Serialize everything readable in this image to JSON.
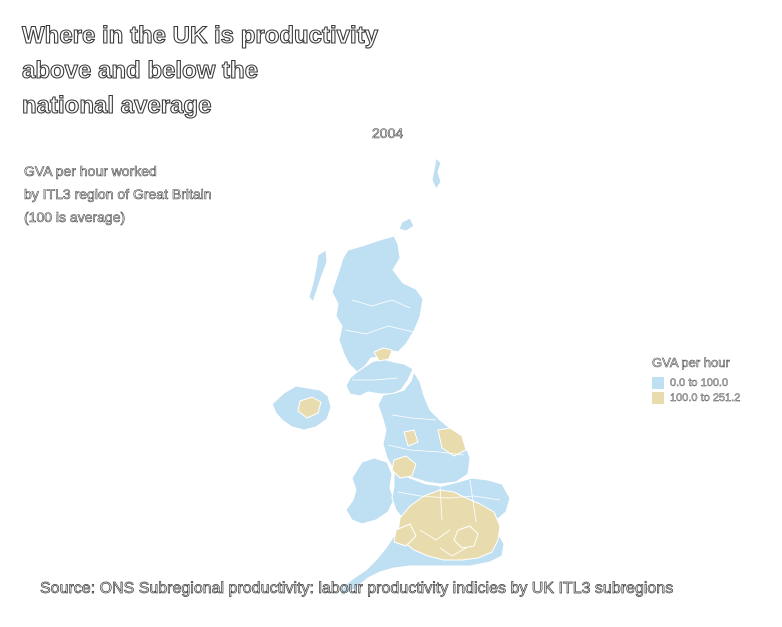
{
  "title_lines": [
    "Where in the UK is productivity",
    "above and below the",
    "national average"
  ],
  "year": "2004",
  "subtitle_lines": [
    "GVA per hour worked",
    "by ITL3 region of Great Britain",
    "(100 is average)"
  ],
  "legend": {
    "title": "GVA per hour",
    "items": [
      {
        "label": "0.0 to 100.0",
        "color": "#bfdff2"
      },
      {
        "label": "100.0 to 251.2",
        "color": "#e8dcae"
      }
    ]
  },
  "source": "Source: ONS Subregional productivity: labour productivity indicies by UK ITL3 subregions",
  "colors": {
    "low": "#bfdff2",
    "high": "#e8dcae",
    "border": "#ffffff"
  }
}
